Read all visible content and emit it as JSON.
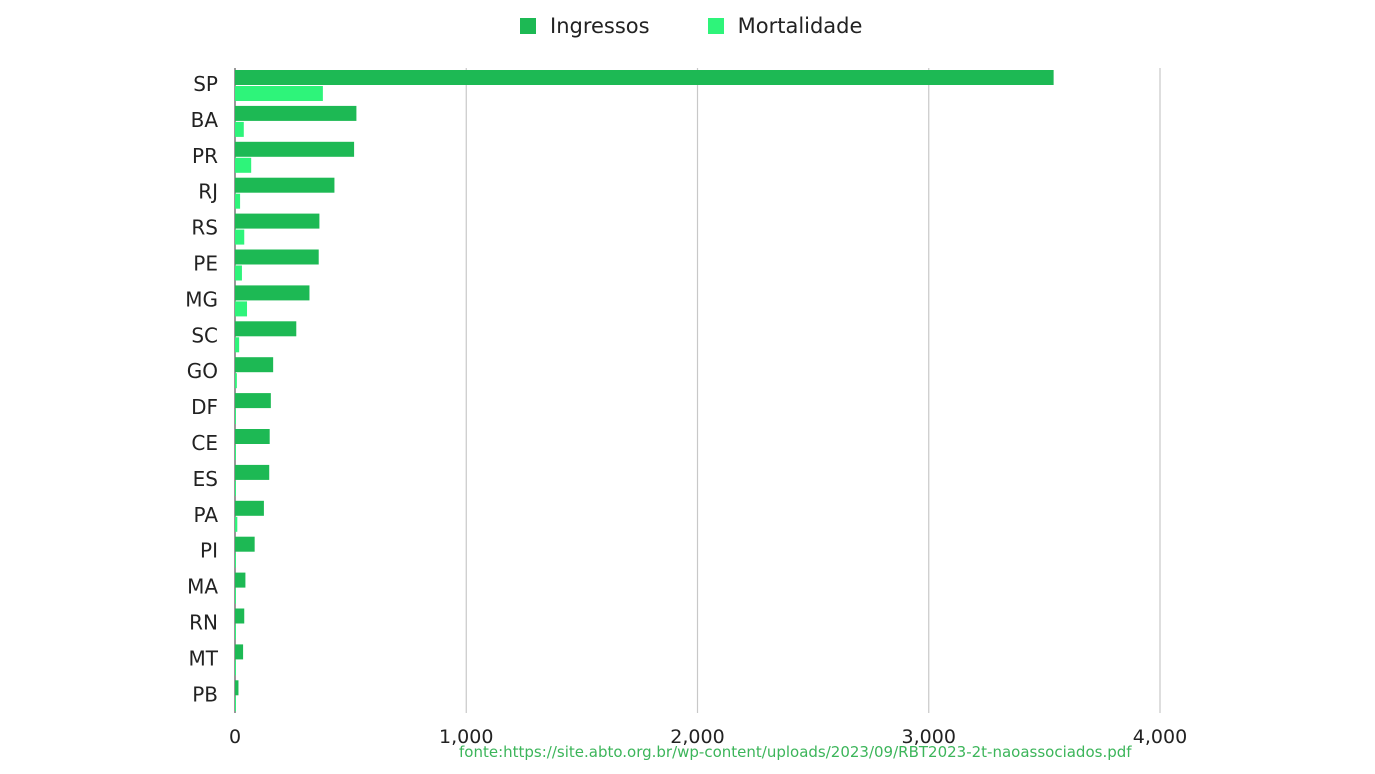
{
  "chart_data": {
    "type": "bar",
    "orientation": "horizontal",
    "categories": [
      "SP",
      "BA",
      "PR",
      "RJ",
      "RS",
      "PE",
      "MG",
      "SC",
      "GO",
      "DF",
      "CE",
      "ES",
      "PA",
      "PI",
      "MA",
      "RN",
      "MT",
      "PB"
    ],
    "series": [
      {
        "name": "Ingressos",
        "color": "#1db954",
        "values": [
          3540,
          525,
          515,
          430,
          365,
          362,
          322,
          265,
          165,
          155,
          150,
          148,
          125,
          85,
          45,
          40,
          35,
          15
        ]
      },
      {
        "name": "Mortalidade",
        "color": "#2ef47a",
        "values": [
          380,
          38,
          70,
          22,
          40,
          30,
          52,
          18,
          8,
          3,
          3,
          3,
          10,
          2,
          2,
          1,
          1,
          1
        ]
      }
    ],
    "xticks": [
      0,
      1000,
      2000,
      3000,
      4000
    ],
    "xtick_labels": [
      "0",
      "1,000",
      "2,000",
      "3,000",
      "4,000"
    ],
    "xlim": [
      0,
      4000
    ],
    "grid": true,
    "legend_position": "top-center"
  },
  "source": "fonte:https://site.abto.org.br/wp-content/uploads/2023/09/RBT2023-2t-naoassociados.pdf"
}
